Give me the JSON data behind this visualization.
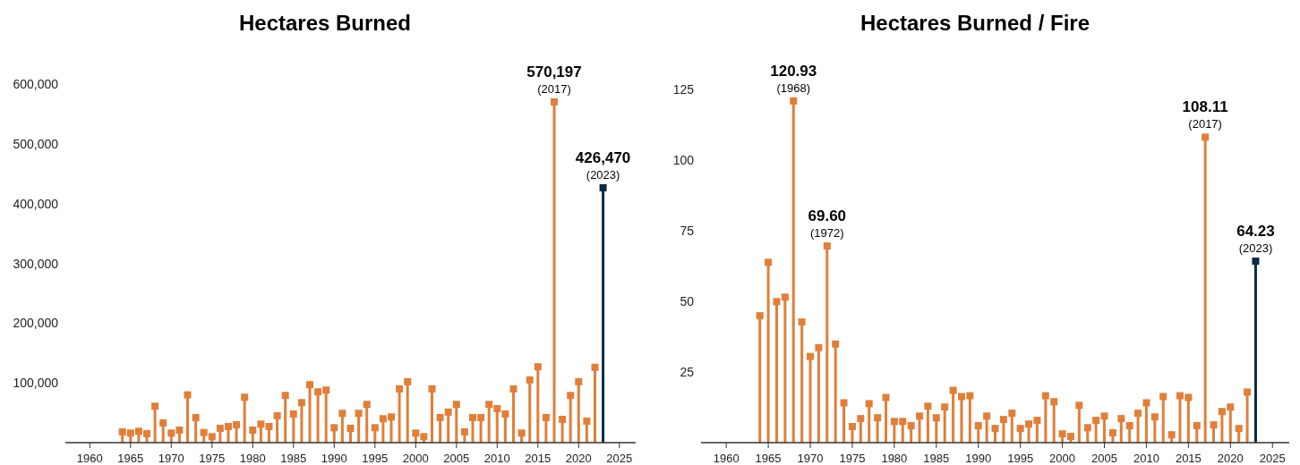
{
  "chart_data": [
    {
      "type": "lollipop",
      "title": "Hectares Burned",
      "marker": "square",
      "grid": false,
      "xlim": [
        1957,
        2027
      ],
      "xticks": [
        1960,
        1965,
        1970,
        1975,
        1980,
        1985,
        1990,
        1995,
        2000,
        2005,
        2010,
        2015,
        2020,
        2025
      ],
      "ylim": [
        0,
        600000
      ],
      "yticks": [
        {
          "value": 100000,
          "label": "100,000"
        },
        {
          "value": 200000,
          "label": "200,000"
        },
        {
          "value": 300000,
          "label": "300,000"
        },
        {
          "value": 400000,
          "label": "400,000"
        },
        {
          "value": 500000,
          "label": "500,000"
        },
        {
          "value": 600000,
          "label": "600,000"
        }
      ],
      "series": [
        {
          "color": "#e07f3a",
          "x": [
            1964,
            1965,
            1966,
            1967,
            1968,
            1969,
            1970,
            1971,
            1972,
            1973,
            1974,
            1975,
            1976,
            1977,
            1978,
            1979,
            1980,
            1981,
            1982,
            1983,
            1984,
            1985,
            1986,
            1987,
            1988,
            1989,
            1990,
            1991,
            1992,
            1993,
            1994,
            1995,
            1996,
            1997,
            1998,
            1999,
            2000,
            2001,
            2002,
            2003,
            2004,
            2005,
            2006,
            2007,
            2008,
            2009,
            2010,
            2011,
            2012,
            2013,
            2014,
            2015,
            2016,
            2017,
            2018,
            2019,
            2020,
            2021,
            2022
          ],
          "values": [
            18000,
            16000,
            19000,
            15000,
            61000,
            33000,
            16000,
            21000,
            80000,
            42000,
            17000,
            10000,
            24000,
            27000,
            30000,
            76000,
            21000,
            31000,
            27000,
            45000,
            79000,
            48000,
            67000,
            97000,
            85000,
            88000,
            25000,
            49000,
            24000,
            49000,
            64000,
            25000,
            40000,
            43000,
            90000,
            102000,
            16000,
            10000,
            90000,
            42000,
            51000,
            64000,
            18000,
            42000,
            42000,
            64000,
            57000,
            48000,
            90000,
            16000,
            105000,
            127000,
            42000,
            570197,
            39000,
            79000,
            102000,
            36000,
            126000
          ]
        },
        {
          "color": "#0b2a45",
          "x": [
            2023
          ],
          "values": [
            426470
          ]
        }
      ],
      "annotations": [
        {
          "text": "570,197",
          "x": 2017,
          "y": 570197
        },
        {
          "text": "(2017)",
          "x": 2017,
          "y": 570197
        },
        {
          "text": "426,470",
          "x": 2023,
          "y": 426470
        },
        {
          "text": "(2023)",
          "x": 2023,
          "y": 426470
        }
      ]
    },
    {
      "type": "lollipop",
      "title": "Hectares Burned / Fire",
      "marker": "square",
      "grid": false,
      "xlim": [
        1957,
        2027
      ],
      "xticks": [
        1960,
        1965,
        1970,
        1975,
        1980,
        1985,
        1990,
        1995,
        2000,
        2005,
        2010,
        2015,
        2020,
        2025
      ],
      "ylim": [
        0,
        125
      ],
      "yticks": [
        25,
        50,
        75,
        100,
        125
      ],
      "series": [
        {
          "color": "#e07f3a",
          "x": [
            1964,
            1965,
            1966,
            1967,
            1968,
            1969,
            1970,
            1971,
            1972,
            1973,
            1974,
            1975,
            1976,
            1977,
            1978,
            1979,
            1980,
            1981,
            1982,
            1983,
            1984,
            1985,
            1986,
            1987,
            1988,
            1989,
            1990,
            1991,
            1992,
            1993,
            1994,
            1995,
            1996,
            1997,
            1998,
            1999,
            2000,
            2001,
            2002,
            2003,
            2004,
            2005,
            2006,
            2007,
            2008,
            2009,
            2010,
            2011,
            2012,
            2013,
            2014,
            2015,
            2016,
            2017,
            2018,
            2019,
            2020,
            2021,
            2022
          ],
          "values": [
            44.9,
            63.8,
            49.9,
            51.5,
            120.93,
            42.7,
            30.5,
            33.6,
            69.6,
            34.9,
            14.1,
            5.7,
            8.5,
            13.8,
            8.8,
            16.0,
            7.5,
            7.5,
            6.0,
            9.4,
            12.9,
            8.8,
            12.6,
            18.5,
            16.3,
            16.6,
            6.0,
            9.4,
            5.0,
            8.2,
            10.4,
            5.0,
            6.6,
            7.9,
            16.6,
            14.5,
            3.1,
            2.2,
            13.2,
            5.3,
            7.9,
            9.4,
            3.5,
            8.5,
            6.0,
            10.4,
            14.1,
            9.1,
            16.3,
            2.8,
            16.6,
            16.0,
            6.0,
            108.11,
            6.3,
            11.0,
            12.6,
            5.0,
            17.9
          ]
        },
        {
          "color": "#0b2a45",
          "x": [
            2023
          ],
          "values": [
            64.23
          ]
        }
      ],
      "annotations": [
        {
          "text": "120.93",
          "x": 1968,
          "y": 120.93
        },
        {
          "text": "(1968)",
          "x": 1968,
          "y": 120.93
        },
        {
          "text": "69.60",
          "x": 1972,
          "y": 69.6
        },
        {
          "text": "(1972)",
          "x": 1972,
          "y": 69.6
        },
        {
          "text": "108.11",
          "x": 2017,
          "y": 108.11
        },
        {
          "text": "(2017)",
          "x": 2017,
          "y": 108.11
        },
        {
          "text": "64.23",
          "x": 2023,
          "y": 64.23
        },
        {
          "text": "(2023)",
          "x": 2023,
          "y": 64.23
        }
      ]
    }
  ]
}
